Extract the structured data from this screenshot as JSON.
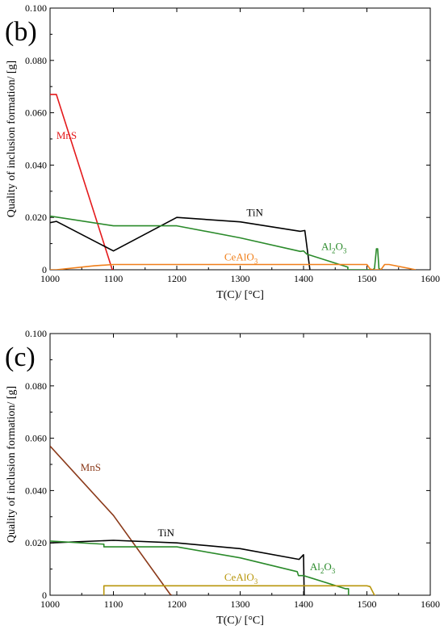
{
  "chart_data": [
    {
      "panel_label": "(b)",
      "type": "line",
      "xlabel": "T(C)/ [°C]",
      "ylabel": "Quality of inclusion formation/ [g]",
      "xlim": [
        1000,
        1600
      ],
      "ylim": [
        0,
        0.1
      ],
      "x_ticks": [
        "1000",
        "1100",
        "1200",
        "1300",
        "1400",
        "1500",
        "1600"
      ],
      "y_ticks": [
        "0",
        "0.020",
        "0.040",
        "0.060",
        "0.080",
        "0.100"
      ],
      "grid": false,
      "series": [
        {
          "name": "MnS",
          "label_main": "MnS",
          "label_sub": "",
          "label_tail": "",
          "color": "#e41a1c",
          "label_at": [
            1010,
            0.05
          ],
          "points": [
            [
              1000,
              0.067
            ],
            [
              1010,
              0.067
            ],
            [
              1098,
              0.0002
            ],
            [
              1100,
              0
            ]
          ]
        },
        {
          "name": "TiN",
          "label_main": "TiN",
          "label_sub": "",
          "label_tail": "",
          "color": "#000000",
          "label_at": [
            1310,
            0.0205
          ],
          "points": [
            [
              1000,
              0.018
            ],
            [
              1010,
              0.0185
            ],
            [
              1100,
              0.0072
            ],
            [
              1200,
              0.02
            ],
            [
              1300,
              0.0183
            ],
            [
              1395,
              0.0147
            ],
            [
              1402,
              0.015
            ],
            [
              1410,
              0
            ]
          ]
        },
        {
          "name": "Al2O3",
          "label_main": "Al",
          "label_sub": "2",
          "label_tail": "O",
          "label_sub2": "3",
          "color": "#2a8a2a",
          "label_at": [
            1428,
            0.0075
          ],
          "points": [
            [
              1000,
              0.0205
            ],
            [
              1100,
              0.0168
            ],
            [
              1200,
              0.0168
            ],
            [
              1300,
              0.0122
            ],
            [
              1395,
              0.007
            ],
            [
              1400,
              0.0072
            ],
            [
              1405,
              0.006
            ],
            [
              1470,
              0.001
            ],
            [
              1470,
              0
            ],
            [
              1509,
              0
            ],
            [
              1512,
              0.0005
            ],
            [
              1515,
              0.008
            ],
            [
              1517,
              0.008
            ],
            [
              1519,
              0.0005
            ],
            [
              1522,
              0
            ]
          ]
        },
        {
          "name": "CeAlO3",
          "label_main": "CeAlO",
          "label_sub": "3",
          "label_tail": "",
          "color": "#f07f1a",
          "label_at": [
            1275,
            0.0035
          ],
          "points": [
            [
              1000,
              0
            ],
            [
              1010,
              0
            ],
            [
              1070,
              0.0015
            ],
            [
              1100,
              0.002
            ],
            [
              1200,
              0.002
            ],
            [
              1300,
              0.002
            ],
            [
              1400,
              0.002
            ],
            [
              1500,
              0.002
            ],
            [
              1505,
              0.0003
            ],
            [
              1510,
              0
            ],
            [
              1522,
              0
            ],
            [
              1528,
              0.002
            ],
            [
              1535,
              0.002
            ],
            [
              1577,
              0
            ]
          ]
        }
      ]
    },
    {
      "panel_label": "(c)",
      "type": "line",
      "xlabel": "T(C)/ [°C]",
      "ylabel": "Quality of inclusion formation/ [g]",
      "xlim": [
        1000,
        1600
      ],
      "ylim": [
        0,
        0.1
      ],
      "x_ticks": [
        "1000",
        "1100",
        "1200",
        "1300",
        "1400",
        "1500",
        "1600"
      ],
      "y_ticks": [
        "0",
        "0.020",
        "0.040",
        "0.060",
        "0.080",
        "0.100"
      ],
      "grid": false,
      "series": [
        {
          "name": "MnS",
          "label_main": "MnS",
          "label_sub": "",
          "label_tail": "",
          "color": "#8b3a1a",
          "label_at": [
            1048,
            0.0475
          ],
          "points": [
            [
              1000,
              0.057
            ],
            [
              1100,
              0.0305
            ],
            [
              1190,
              0.0002
            ],
            [
              1192,
              0
            ]
          ]
        },
        {
          "name": "TiN",
          "label_main": "TiN",
          "label_sub": "",
          "label_tail": "",
          "color": "#000000",
          "label_at": [
            1170,
            0.0225
          ],
          "points": [
            [
              1000,
              0.02
            ],
            [
              1100,
              0.021
            ],
            [
              1200,
              0.02
            ],
            [
              1300,
              0.0178
            ],
            [
              1393,
              0.0137
            ],
            [
              1400,
              0.0155
            ],
            [
              1401,
              0
            ]
          ]
        },
        {
          "name": "Al2O3",
          "label_main": "Al",
          "label_sub": "2",
          "label_tail": "O",
          "label_sub2": "3",
          "color": "#2a8a2a",
          "label_at": [
            1410,
            0.0095
          ],
          "points": [
            [
              1000,
              0.0207
            ],
            [
              1085,
              0.0195
            ],
            [
              1085,
              0.0185
            ],
            [
              1200,
              0.0185
            ],
            [
              1300,
              0.0143
            ],
            [
              1390,
              0.009
            ],
            [
              1392,
              0.0075
            ],
            [
              1400,
              0.0075
            ],
            [
              1466,
              0.0025
            ],
            [
              1471,
              0.0025
            ],
            [
              1471,
              0
            ]
          ]
        },
        {
          "name": "CeAlO3",
          "label_main": "CeAlO",
          "label_sub": "3",
          "label_tail": "",
          "color": "#b8960c",
          "label_at": [
            1275,
            0.0055
          ],
          "points": [
            [
              1085,
              0
            ],
            [
              1085,
              0.0036
            ],
            [
              1200,
              0.0036
            ],
            [
              1300,
              0.0036
            ],
            [
              1400,
              0.0036
            ],
            [
              1500,
              0.0036
            ],
            [
              1505,
              0.0033
            ],
            [
              1512,
              0
            ],
            [
              1514,
              0
            ]
          ]
        }
      ]
    }
  ]
}
